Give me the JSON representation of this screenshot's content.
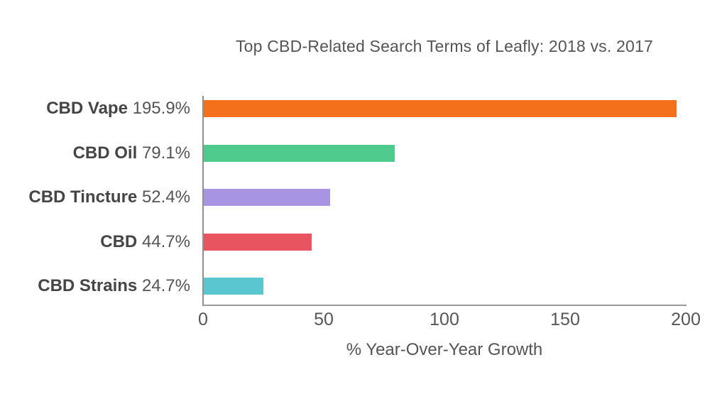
{
  "chart_data": {
    "type": "bar",
    "orientation": "horizontal",
    "title": "Top CBD-Related Search Terms of Leafly: 2018 vs. 2017",
    "xlabel": "% Year-Over-Year Growth",
    "categories": [
      "CBD Vape",
      "CBD Oil",
      "CBD Tincture",
      "CBD",
      "CBD Strains"
    ],
    "values": [
      195.9,
      79.1,
      52.4,
      44.7,
      24.7
    ],
    "value_labels": [
      "195.9%",
      "79.1%",
      "52.4%",
      "44.7%",
      "24.7%"
    ],
    "bar_colors": [
      "#f4701b",
      "#4ecb8d",
      "#a795e3",
      "#e8545f",
      "#5ac6ce"
    ],
    "xlim": [
      0,
      200
    ],
    "xticks": [
      0,
      50,
      100,
      150,
      200
    ],
    "grid": false,
    "legend": "none",
    "background_color": "#ffffff",
    "axis_color": "#98989a",
    "text_color": "#4d4d50"
  }
}
